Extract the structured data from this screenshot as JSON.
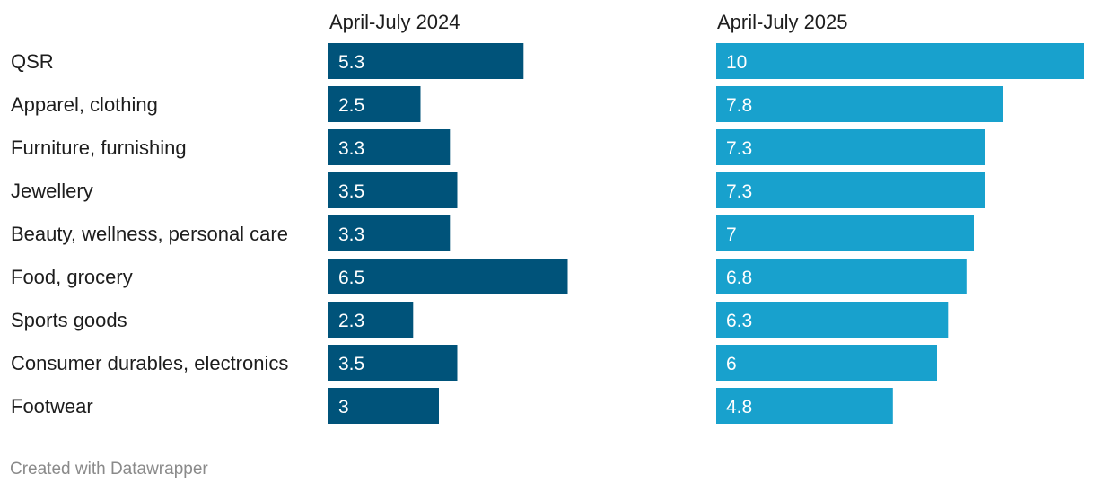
{
  "chart_data": {
    "type": "bar",
    "orientation": "horizontal",
    "layout": "split-columns",
    "categories": [
      "QSR",
      "Apparel, clothing",
      "Furniture, furnishing",
      "Jewellery",
      "Beauty, wellness, personal care",
      "Food, grocery",
      "Sports goods",
      "Consumer durables, electronics",
      "Footwear"
    ],
    "series": [
      {
        "name": "April-July 2024",
        "color": "#00537a",
        "values": [
          5.3,
          2.5,
          3.3,
          3.5,
          3.3,
          6.5,
          2.3,
          3.5,
          3
        ],
        "value_labels": [
          "5.3",
          "2.5",
          "3.3",
          "3.5",
          "3.3",
          "6.5",
          "2.3",
          "3.5",
          "3"
        ]
      },
      {
        "name": "April-July 2025",
        "color": "#18a1cd",
        "values": [
          10,
          7.8,
          7.3,
          7.3,
          7,
          6.8,
          6.3,
          6,
          4.8
        ],
        "value_labels": [
          "10",
          "7.8",
          "7.3",
          "7.3",
          "7",
          "6.8",
          "6.3",
          "6",
          "4.8"
        ]
      }
    ],
    "xlim": [
      0,
      10
    ],
    "grid": false,
    "legend": "column headers"
  },
  "footer": {
    "credit": "Created with Datawrapper"
  }
}
